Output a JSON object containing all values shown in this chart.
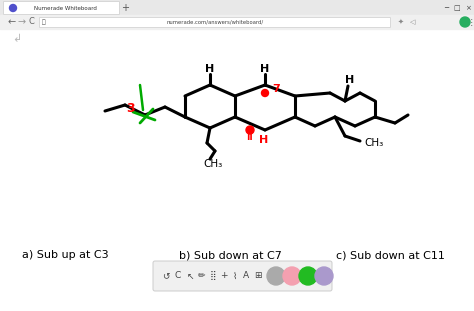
{
  "bg_color": "#f0f0f0",
  "content_bg": "#ffffff",
  "tab_text": "Numerade Whiteboard",
  "url_text": "numerade.com/answers/whiteboard/",
  "answer_a": "a) Sub up at C3",
  "answer_b": "b) Sub down at C7",
  "answer_c": "c) Sub down at C11",
  "black": "#000000",
  "red": "#cc0000",
  "green": "#00aa00",
  "gray_circle": "#999999",
  "pink_circle": "#f4a0a0",
  "green_circle": "#22aa22",
  "purple_circle": "#aa99cc"
}
